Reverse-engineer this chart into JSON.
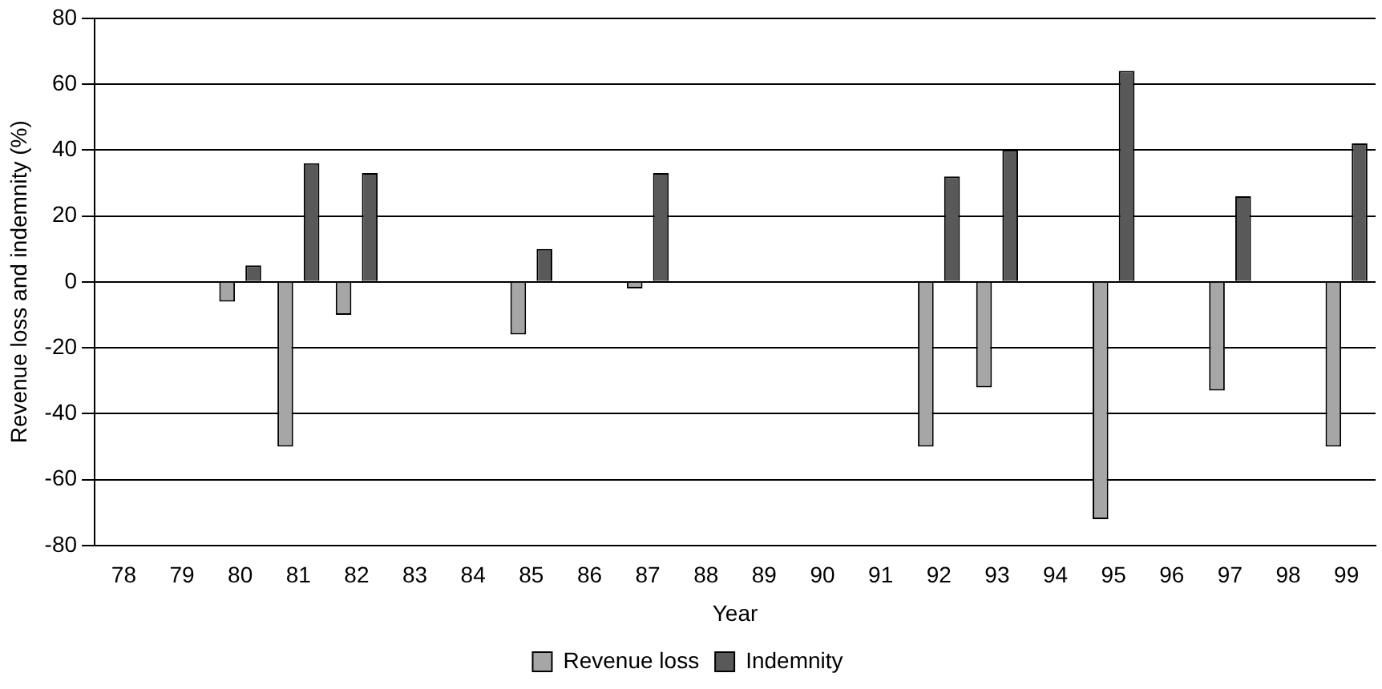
{
  "chart_data": {
    "type": "bar",
    "xlabel": "Year",
    "ylabel": "Revenue loss and indemnity (%)",
    "categories": [
      "78",
      "79",
      "80",
      "81",
      "82",
      "83",
      "84",
      "85",
      "86",
      "87",
      "88",
      "89",
      "90",
      "91",
      "92",
      "93",
      "94",
      "95",
      "96",
      "97",
      "98",
      "99"
    ],
    "series": [
      {
        "name": "Revenue loss",
        "color": "#a6a6a6",
        "values": [
          null,
          null,
          -6,
          -50,
          -10,
          null,
          null,
          -16,
          null,
          -2,
          null,
          null,
          null,
          null,
          -50,
          -32,
          null,
          -72,
          null,
          -33,
          null,
          -50
        ]
      },
      {
        "name": "Indemnity",
        "color": "#595959",
        "values": [
          null,
          null,
          5,
          36,
          33,
          null,
          null,
          10,
          null,
          33,
          null,
          null,
          null,
          null,
          32,
          40,
          null,
          64,
          null,
          26,
          null,
          42
        ]
      }
    ],
    "ylim": [
      -80,
      80
    ],
    "yticks": [
      -80,
      -60,
      -40,
      -20,
      0,
      20,
      40,
      60,
      80
    ],
    "grid": "y",
    "legend": "bottom"
  }
}
